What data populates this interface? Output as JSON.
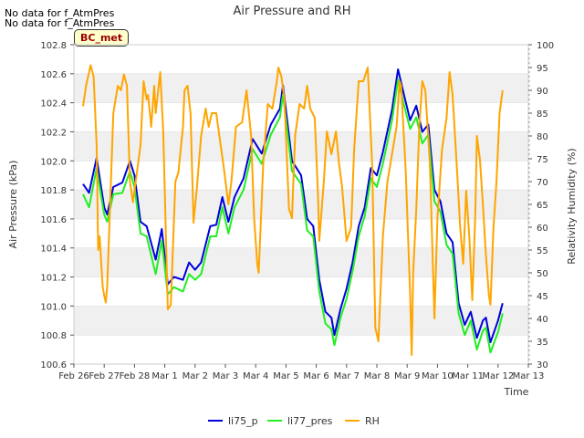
{
  "notes": [
    "No data for f_AtmPres",
    "No data for f_AtmPres"
  ],
  "badge": "BC_met",
  "colors": {
    "li75_p": "#0000dd",
    "li77_pres": "#22ee22",
    "RH": "#ffa500",
    "band": "#f0f0f0",
    "grid": "#dddddd"
  },
  "chart_data": {
    "type": "line",
    "title": "Air Pressure and RH",
    "xlabel": "Time",
    "ylabel": "Air Pressure (kPa)",
    "y2label": "Relativity Humidity (%)",
    "x_ticks": [
      "Feb 26",
      "Feb 27",
      "Feb 28",
      "Mar 1",
      "Mar 2",
      "Mar 3",
      "Mar 4",
      "Mar 5",
      "Mar 6",
      "Mar 7",
      "Mar 8",
      "Mar 9",
      "Mar 10",
      "Mar 11",
      "Mar 12",
      "Mar 13"
    ],
    "x_range_days": [
      0,
      15
    ],
    "ylim": [
      100.6,
      102.8
    ],
    "y_ticks": [
      "100.6",
      "100.8",
      "101.0",
      "101.2",
      "101.4",
      "101.6",
      "101.8",
      "102.0",
      "102.2",
      "102.4",
      "102.6",
      "102.8"
    ],
    "y2lim": [
      30,
      100
    ],
    "y2_ticks": [
      "30",
      "35",
      "40",
      "45",
      "50",
      "55",
      "60",
      "65",
      "70",
      "75",
      "80",
      "85",
      "90",
      "95",
      "100"
    ],
    "grid": "horizontal bands",
    "legend_position": "bottom-center",
    "series": [
      {
        "name": "li75_p",
        "axis": "left",
        "points": [
          [
            0.3,
            101.84
          ],
          [
            0.5,
            101.78
          ],
          [
            0.75,
            102.02
          ],
          [
            1.0,
            101.68
          ],
          [
            1.1,
            101.63
          ],
          [
            1.3,
            101.82
          ],
          [
            1.6,
            101.85
          ],
          [
            1.85,
            102.0
          ],
          [
            2.0,
            101.9
          ],
          [
            2.2,
            101.58
          ],
          [
            2.4,
            101.55
          ],
          [
            2.7,
            101.32
          ],
          [
            2.9,
            101.53
          ],
          [
            3.1,
            101.15
          ],
          [
            3.3,
            101.2
          ],
          [
            3.6,
            101.18
          ],
          [
            3.8,
            101.3
          ],
          [
            4.0,
            101.25
          ],
          [
            4.2,
            101.3
          ],
          [
            4.5,
            101.55
          ],
          [
            4.7,
            101.56
          ],
          [
            4.9,
            101.75
          ],
          [
            5.1,
            101.58
          ],
          [
            5.3,
            101.75
          ],
          [
            5.6,
            101.88
          ],
          [
            5.9,
            102.15
          ],
          [
            6.2,
            102.05
          ],
          [
            6.5,
            102.25
          ],
          [
            6.8,
            102.36
          ],
          [
            6.9,
            102.52
          ],
          [
            7.2,
            102.0
          ],
          [
            7.5,
            101.9
          ],
          [
            7.7,
            101.6
          ],
          [
            7.9,
            101.55
          ],
          [
            8.1,
            101.18
          ],
          [
            8.3,
            100.96
          ],
          [
            8.5,
            100.92
          ],
          [
            8.6,
            100.8
          ],
          [
            8.8,
            100.98
          ],
          [
            9.0,
            101.12
          ],
          [
            9.2,
            101.3
          ],
          [
            9.4,
            101.55
          ],
          [
            9.6,
            101.68
          ],
          [
            9.8,
            101.95
          ],
          [
            10.0,
            101.9
          ],
          [
            10.2,
            102.06
          ],
          [
            10.5,
            102.35
          ],
          [
            10.7,
            102.63
          ],
          [
            10.9,
            102.45
          ],
          [
            11.1,
            102.28
          ],
          [
            11.3,
            102.38
          ],
          [
            11.5,
            102.2
          ],
          [
            11.7,
            102.25
          ],
          [
            11.9,
            101.8
          ],
          [
            12.1,
            101.72
          ],
          [
            12.3,
            101.5
          ],
          [
            12.5,
            101.44
          ],
          [
            12.7,
            101.02
          ],
          [
            12.9,
            100.87
          ],
          [
            13.1,
            100.96
          ],
          [
            13.3,
            100.78
          ],
          [
            13.5,
            100.9
          ],
          [
            13.6,
            100.92
          ],
          [
            13.75,
            100.75
          ],
          [
            14.0,
            100.9
          ],
          [
            14.15,
            101.02
          ]
        ]
      },
      {
        "name": "li77_pres",
        "axis": "left",
        "points": [
          [
            0.3,
            101.77
          ],
          [
            0.5,
            101.68
          ],
          [
            0.75,
            101.95
          ],
          [
            1.0,
            101.63
          ],
          [
            1.1,
            101.58
          ],
          [
            1.3,
            101.77
          ],
          [
            1.6,
            101.78
          ],
          [
            1.85,
            101.93
          ],
          [
            2.0,
            101.82
          ],
          [
            2.2,
            101.5
          ],
          [
            2.4,
            101.48
          ],
          [
            2.7,
            101.22
          ],
          [
            2.9,
            101.45
          ],
          [
            3.1,
            101.08
          ],
          [
            3.3,
            101.13
          ],
          [
            3.6,
            101.1
          ],
          [
            3.8,
            101.22
          ],
          [
            4.0,
            101.18
          ],
          [
            4.2,
            101.22
          ],
          [
            4.5,
            101.48
          ],
          [
            4.7,
            101.48
          ],
          [
            4.9,
            101.68
          ],
          [
            5.1,
            101.5
          ],
          [
            5.3,
            101.68
          ],
          [
            5.6,
            101.8
          ],
          [
            5.9,
            102.08
          ],
          [
            6.2,
            101.98
          ],
          [
            6.5,
            102.18
          ],
          [
            6.8,
            102.3
          ],
          [
            6.9,
            102.46
          ],
          [
            7.2,
            101.93
          ],
          [
            7.5,
            101.84
          ],
          [
            7.7,
            101.52
          ],
          [
            7.9,
            101.48
          ],
          [
            8.1,
            101.1
          ],
          [
            8.3,
            100.88
          ],
          [
            8.5,
            100.84
          ],
          [
            8.6,
            100.73
          ],
          [
            8.8,
            100.92
          ],
          [
            9.0,
            101.05
          ],
          [
            9.2,
            101.24
          ],
          [
            9.4,
            101.48
          ],
          [
            9.6,
            101.62
          ],
          [
            9.8,
            101.88
          ],
          [
            10.0,
            101.82
          ],
          [
            10.2,
            101.98
          ],
          [
            10.5,
            102.28
          ],
          [
            10.7,
            102.56
          ],
          [
            10.9,
            102.38
          ],
          [
            11.1,
            102.22
          ],
          [
            11.3,
            102.3
          ],
          [
            11.5,
            102.12
          ],
          [
            11.7,
            102.18
          ],
          [
            11.9,
            101.72
          ],
          [
            12.1,
            101.65
          ],
          [
            12.3,
            101.42
          ],
          [
            12.5,
            101.36
          ],
          [
            12.7,
            100.95
          ],
          [
            12.9,
            100.8
          ],
          [
            13.1,
            100.9
          ],
          [
            13.3,
            100.7
          ],
          [
            13.5,
            100.83
          ],
          [
            13.6,
            100.85
          ],
          [
            13.75,
            100.68
          ],
          [
            14.0,
            100.82
          ],
          [
            14.15,
            100.95
          ]
        ]
      },
      {
        "name": "RH",
        "axis": "right",
        "points": [
          [
            0.3,
            86.5
          ],
          [
            0.4,
            91
          ],
          [
            0.55,
            95.5
          ],
          [
            0.65,
            93
          ],
          [
            0.75,
            78
          ],
          [
            0.8,
            55
          ],
          [
            0.85,
            58
          ],
          [
            0.95,
            47
          ],
          [
            1.0,
            45
          ],
          [
            1.05,
            43.5
          ],
          [
            1.1,
            47
          ],
          [
            1.3,
            85
          ],
          [
            1.45,
            91
          ],
          [
            1.55,
            90
          ],
          [
            1.65,
            93.5
          ],
          [
            1.75,
            91
          ],
          [
            1.85,
            70
          ],
          [
            1.95,
            65.5
          ],
          [
            2.1,
            73
          ],
          [
            2.2,
            78
          ],
          [
            2.3,
            92
          ],
          [
            2.4,
            88
          ],
          [
            2.45,
            89
          ],
          [
            2.55,
            82
          ],
          [
            2.65,
            91
          ],
          [
            2.7,
            85
          ],
          [
            2.85,
            94
          ],
          [
            2.95,
            81
          ],
          [
            3.1,
            42
          ],
          [
            3.2,
            43
          ],
          [
            3.35,
            70
          ],
          [
            3.45,
            72
          ],
          [
            3.6,
            82
          ],
          [
            3.65,
            90
          ],
          [
            3.75,
            91
          ],
          [
            3.85,
            85
          ],
          [
            3.95,
            61
          ],
          [
            4.05,
            68
          ],
          [
            4.2,
            80
          ],
          [
            4.35,
            86
          ],
          [
            4.45,
            82
          ],
          [
            4.55,
            85
          ],
          [
            4.7,
            85
          ],
          [
            4.8,
            80
          ],
          [
            4.95,
            73
          ],
          [
            5.1,
            65
          ],
          [
            5.2,
            70
          ],
          [
            5.35,
            82
          ],
          [
            5.55,
            83
          ],
          [
            5.7,
            90
          ],
          [
            5.85,
            80
          ],
          [
            5.95,
            62
          ],
          [
            6.05,
            52
          ],
          [
            6.1,
            50
          ],
          [
            6.25,
            74
          ],
          [
            6.4,
            87
          ],
          [
            6.55,
            86
          ],
          [
            6.7,
            92
          ],
          [
            6.75,
            95
          ],
          [
            6.85,
            93
          ],
          [
            6.95,
            88
          ],
          [
            7.1,
            64
          ],
          [
            7.2,
            62
          ],
          [
            7.3,
            80
          ],
          [
            7.45,
            87
          ],
          [
            7.6,
            86
          ],
          [
            7.7,
            91
          ],
          [
            7.8,
            86
          ],
          [
            7.95,
            84
          ],
          [
            8.05,
            68
          ],
          [
            8.1,
            57
          ],
          [
            8.25,
            70
          ],
          [
            8.35,
            81
          ],
          [
            8.5,
            76
          ],
          [
            8.65,
            81
          ],
          [
            8.75,
            74
          ],
          [
            8.85,
            69
          ],
          [
            9.0,
            57
          ],
          [
            9.15,
            60
          ],
          [
            9.25,
            77
          ],
          [
            9.4,
            92
          ],
          [
            9.55,
            92
          ],
          [
            9.7,
            95
          ],
          [
            9.85,
            73
          ],
          [
            9.95,
            38
          ],
          [
            10.05,
            35
          ],
          [
            10.2,
            58
          ],
          [
            10.35,
            70
          ],
          [
            10.5,
            76
          ],
          [
            10.65,
            82
          ],
          [
            10.75,
            92
          ],
          [
            10.8,
            91
          ],
          [
            10.95,
            73
          ],
          [
            11.1,
            45
          ],
          [
            11.15,
            32
          ],
          [
            11.2,
            50
          ],
          [
            11.3,
            64
          ],
          [
            11.4,
            82
          ],
          [
            11.5,
            92
          ],
          [
            11.6,
            90
          ],
          [
            11.75,
            74
          ],
          [
            11.9,
            40
          ],
          [
            12.0,
            62
          ],
          [
            12.15,
            77
          ],
          [
            12.3,
            84
          ],
          [
            12.4,
            94
          ],
          [
            12.5,
            89
          ],
          [
            12.65,
            72
          ],
          [
            12.75,
            60
          ],
          [
            12.85,
            52
          ],
          [
            12.95,
            68
          ],
          [
            13.05,
            58
          ],
          [
            13.15,
            44
          ],
          [
            13.25,
            63
          ],
          [
            13.3,
            80
          ],
          [
            13.4,
            75
          ],
          [
            13.5,
            65
          ],
          [
            13.6,
            54
          ],
          [
            13.7,
            45
          ],
          [
            13.75,
            43
          ],
          [
            13.85,
            60
          ],
          [
            13.95,
            70
          ],
          [
            14.05,
            85
          ],
          [
            14.15,
            90
          ]
        ]
      }
    ]
  }
}
